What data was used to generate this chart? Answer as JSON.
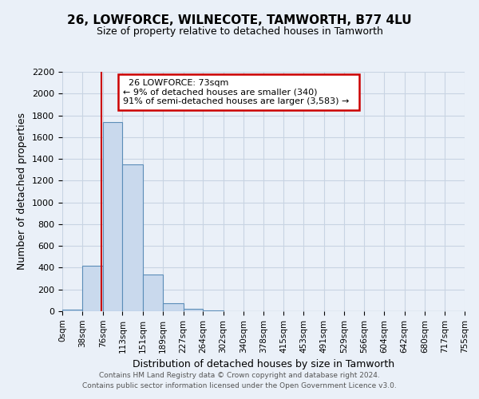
{
  "title": "26, LOWFORCE, WILNECOTE, TAMWORTH, B77 4LU",
  "subtitle": "Size of property relative to detached houses in Tamworth",
  "xlabel": "Distribution of detached houses by size in Tamworth",
  "ylabel": "Number of detached properties",
  "bin_edges": [
    0,
    38,
    76,
    113,
    151,
    189,
    227,
    264,
    302,
    340,
    378,
    415,
    453,
    491,
    529,
    566,
    604,
    642,
    680,
    717,
    755
  ],
  "bar_heights": [
    15,
    420,
    1740,
    1350,
    340,
    75,
    25,
    5,
    0,
    0,
    0,
    0,
    0,
    0,
    0,
    0,
    0,
    0,
    0,
    0
  ],
  "bar_color": "#c9d9ed",
  "bar_edge_color": "#5b8db8",
  "bar_edge_width": 0.8,
  "grid_color": "#c8d4e3",
  "background_color": "#eaf0f8",
  "ylim": [
    0,
    2200
  ],
  "yticks": [
    0,
    200,
    400,
    600,
    800,
    1000,
    1200,
    1400,
    1600,
    1800,
    2000,
    2200
  ],
  "red_line_x": 73,
  "red_line_color": "#cc0000",
  "annotation_title": "26 LOWFORCE: 73sqm",
  "annotation_line1": "← 9% of detached houses are smaller (340)",
  "annotation_line2": "91% of semi-detached houses are larger (3,583) →",
  "annotation_box_color": "#ffffff",
  "annotation_box_edge_color": "#cc0000",
  "footer_line1": "Contains HM Land Registry data © Crown copyright and database right 2024.",
  "footer_line2": "Contains public sector information licensed under the Open Government Licence v3.0.",
  "tick_labels": [
    "0sqm",
    "38sqm",
    "76sqm",
    "113sqm",
    "151sqm",
    "189sqm",
    "227sqm",
    "264sqm",
    "302sqm",
    "340sqm",
    "378sqm",
    "415sqm",
    "453sqm",
    "491sqm",
    "529sqm",
    "566sqm",
    "604sqm",
    "642sqm",
    "680sqm",
    "717sqm",
    "755sqm"
  ]
}
